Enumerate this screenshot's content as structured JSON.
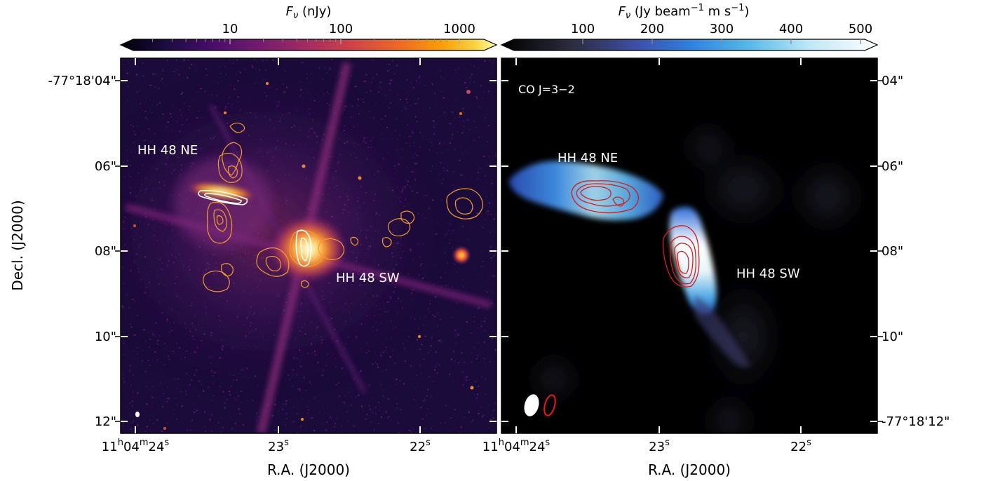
{
  "colors": {
    "inferno_colormap": [
      "#000004",
      "#1b0c41",
      "#4a0c6b",
      "#781c6d",
      "#a52c60",
      "#cf4446",
      "#ed6925",
      "#fb9b06",
      "#f7d13d",
      "#fcffa4"
    ],
    "co_colormap": [
      "#000000",
      "#2a2a3a",
      "#3d4fa8",
      "#2f7fe0",
      "#52b6e8",
      "#bfe8f5",
      "#ffffff"
    ],
    "nircam_contour": "#f39c2a",
    "white_contour": "#ffffff",
    "co_contour": "#d81b1b",
    "beam_fill": "#ffffff",
    "beam_outline": "#e8191b"
  },
  "left_colorbar": {
    "label_prefix": "F",
    "label_sub": "ν",
    "label_suffix": " (nJy)",
    "scale": "log",
    "ticks": [
      "10",
      "100",
      "1000"
    ],
    "cmap": "inferno"
  },
  "right_colorbar": {
    "label_prefix": "F",
    "label_sub": "ν",
    "label_mid1": " (Jy beam",
    "sup1": "−1",
    "label_mid2": " m s",
    "sup2": "−1",
    "label_end": ")",
    "scale": "linear",
    "ticks": [
      "100",
      "200",
      "300",
      "400",
      "500"
    ],
    "cmap": "co"
  },
  "left_panel": {
    "labels": {
      "ne": "HH 48 NE",
      "sw": "HH 48 SW"
    }
  },
  "right_panel": {
    "tracer": "CO J=3−2",
    "labels": {
      "ne": "HH 48 NE",
      "sw": "HH 48 SW"
    }
  },
  "dec_ticks_left": [
    "-77°18'04\"",
    "06\"",
    "08\"",
    "10\"",
    "12\""
  ],
  "dec_ticks_right": [
    "04\"",
    "06\"",
    "08\"",
    "10\"",
    "-77°18'12\""
  ],
  "ra_ticks_left": [
    {
      "h": "11",
      "m": "04",
      "s": "24"
    },
    {
      "s": "23"
    },
    {
      "s": "22"
    }
  ],
  "ra_ticks_right": [
    {
      "h": "11",
      "m": "04",
      "s": "24"
    },
    {
      "s": "23"
    },
    {
      "s": "22"
    }
  ],
  "ra_units": {
    "h": "h",
    "m": "m",
    "s": "s"
  },
  "axis_labels": {
    "y": "Decl. (J2000)",
    "x": "R.A. (J2000)"
  }
}
